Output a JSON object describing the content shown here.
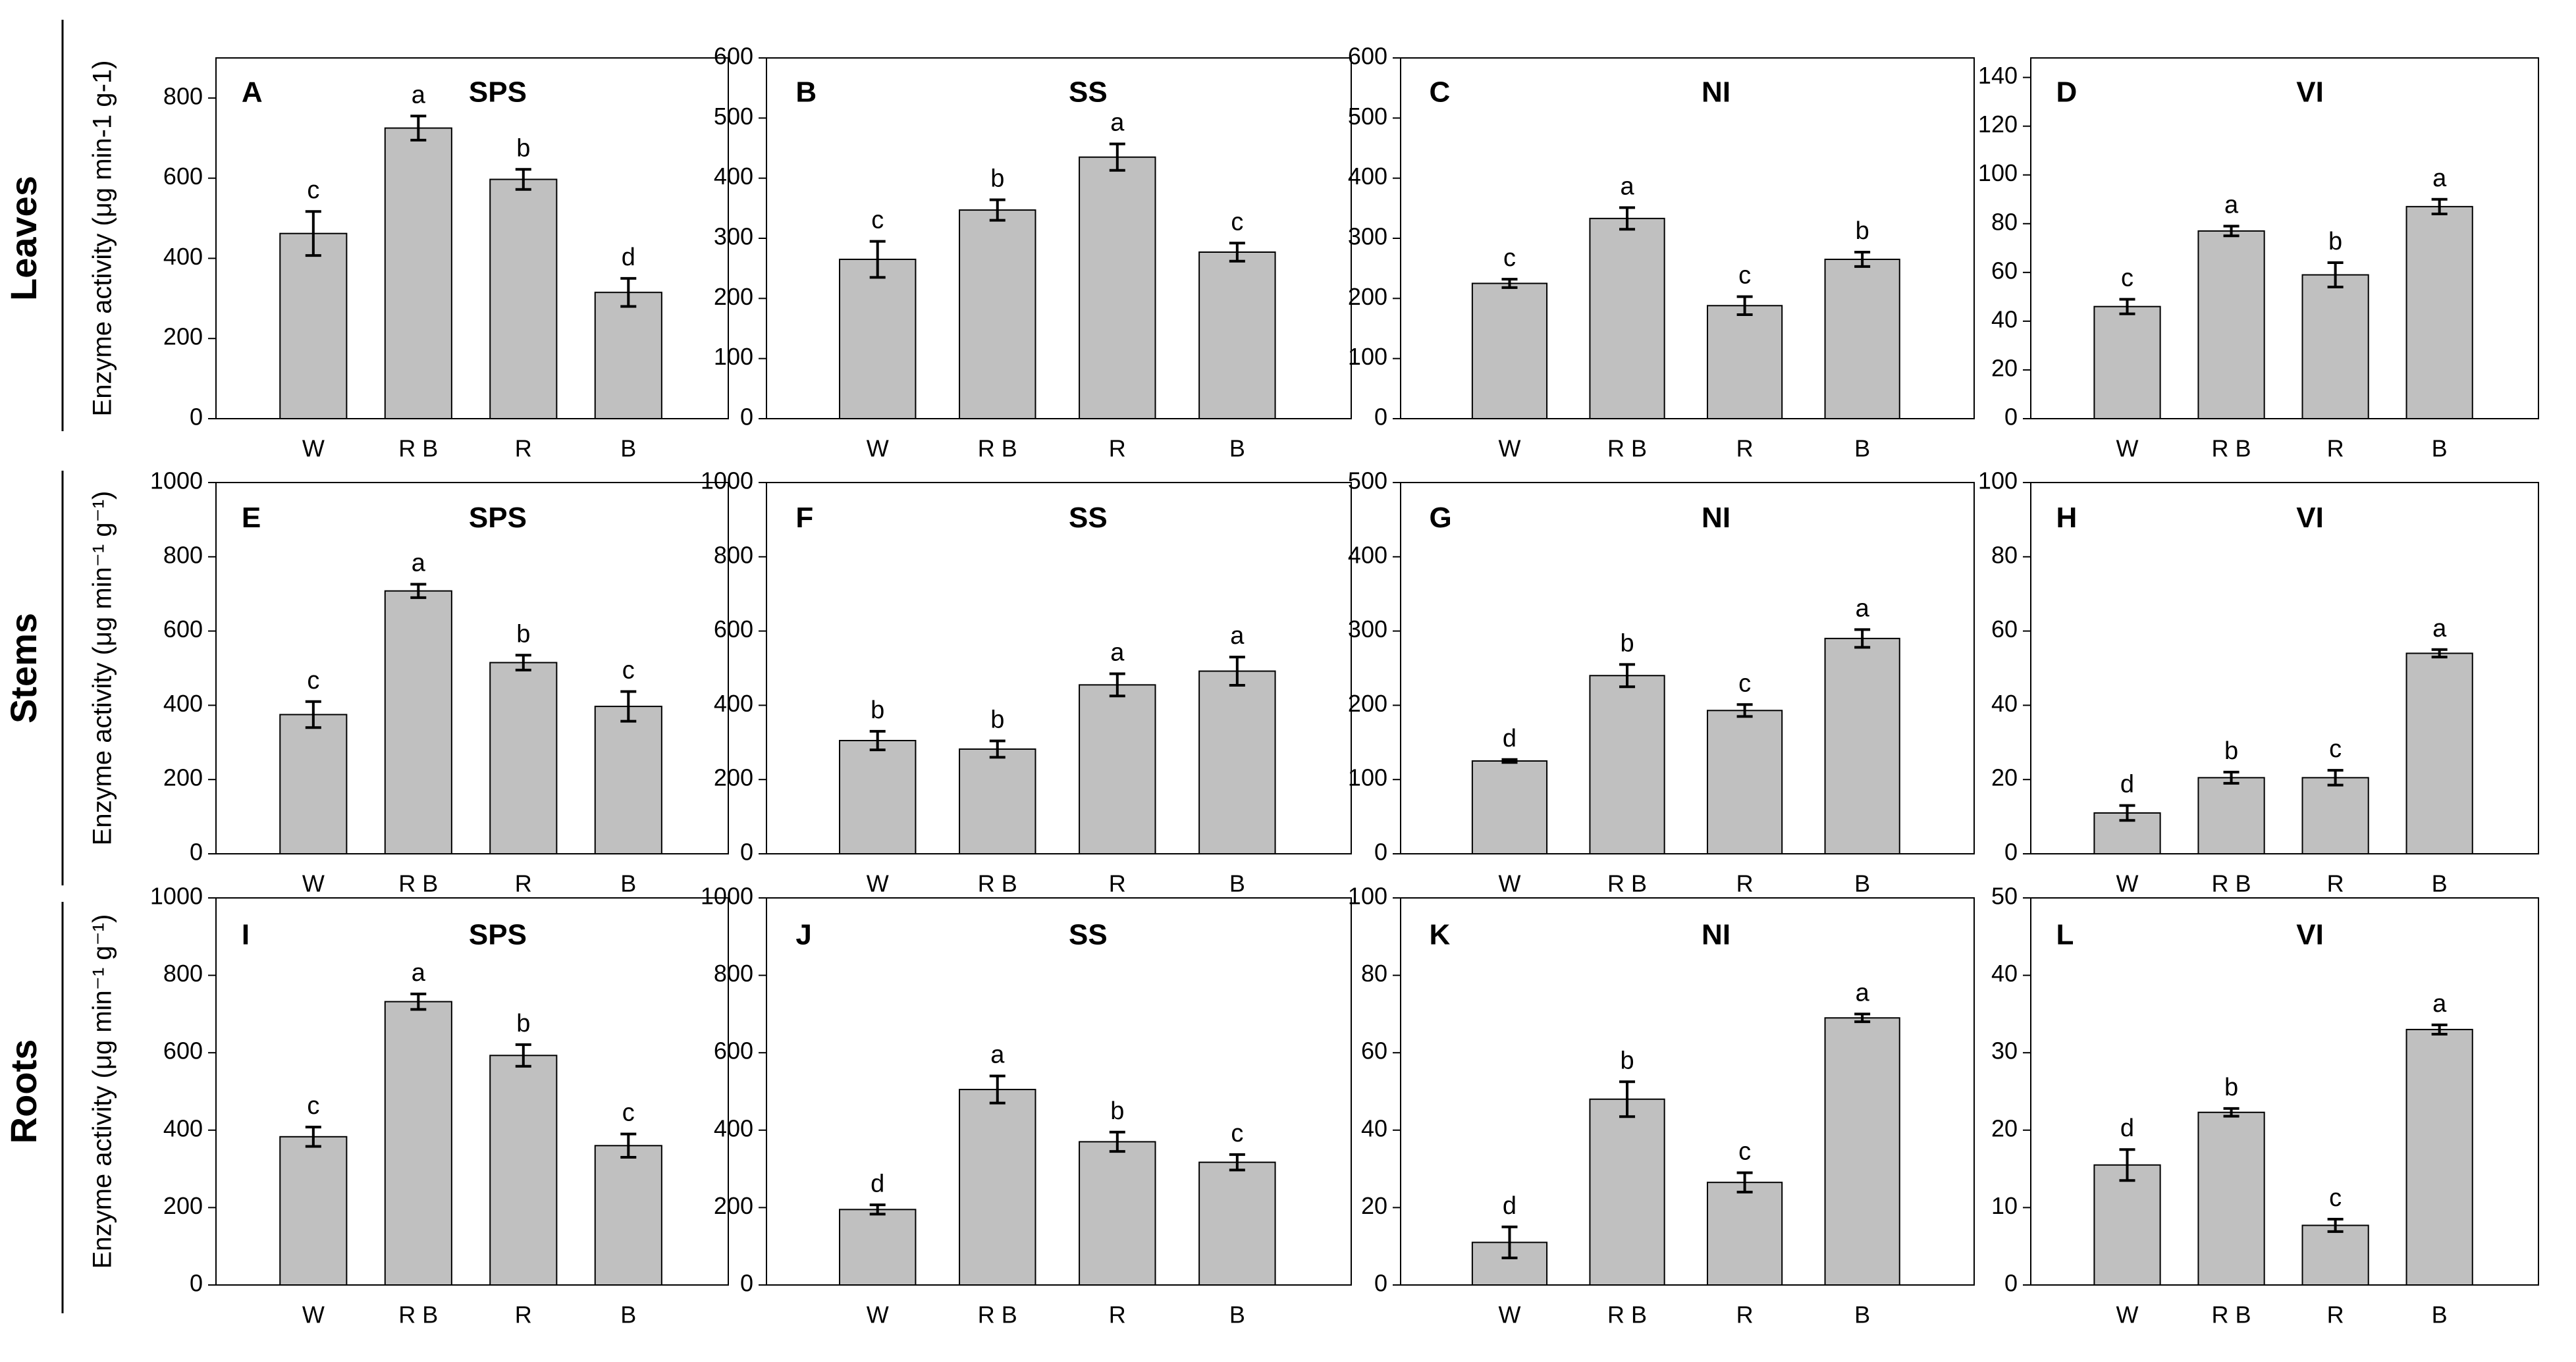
{
  "row_labels": [
    "Leaves",
    "Stems",
    "Roots"
  ],
  "chart_data": [
    {
      "type": "bar",
      "panel": "A",
      "title": "SPS",
      "ylabel": "Enzyme activity (μg min-1 g-1)",
      "categories": [
        "W",
        "R B",
        "R",
        "B"
      ],
      "values": [
        462,
        725,
        597,
        315
      ],
      "errors": [
        55,
        30,
        25,
        35
      ],
      "annotations": [
        "c",
        "a",
        "b",
        "d"
      ],
      "color": "#c0c0c0",
      "ylim": [
        0,
        900
      ],
      "yticks": [
        0,
        200,
        400,
        600,
        800
      ]
    },
    {
      "type": "bar",
      "panel": "B",
      "title": "SS",
      "categories": [
        "W",
        "R B",
        "R",
        "B"
      ],
      "values": [
        265,
        347,
        435,
        277
      ],
      "errors": [
        30,
        17,
        22,
        15
      ],
      "annotations": [
        "c",
        "b",
        "a",
        "c"
      ],
      "color": "#c0c0c0",
      "ylim": [
        0,
        600
      ],
      "yticks": [
        0,
        100,
        200,
        300,
        400,
        500,
        600
      ]
    },
    {
      "type": "bar",
      "panel": "C",
      "title": "NI",
      "categories": [
        "W",
        "R B",
        "R",
        "B"
      ],
      "values": [
        225,
        333,
        188,
        265
      ],
      "errors": [
        7,
        18,
        15,
        12
      ],
      "annotations": [
        "c",
        "a",
        "c",
        "b"
      ],
      "color": "#c0c0c0",
      "ylim": [
        0,
        600
      ],
      "yticks": [
        0,
        100,
        200,
        300,
        400,
        500,
        600
      ]
    },
    {
      "type": "bar",
      "panel": "D",
      "title": "VI",
      "categories": [
        "W",
        "R B",
        "R",
        "B"
      ],
      "values": [
        46,
        77,
        59,
        87
      ],
      "errors": [
        3,
        2,
        5,
        3
      ],
      "annotations": [
        "c",
        "a",
        "b",
        "a"
      ],
      "color": "#c0c0c0",
      "ylim": [
        0,
        148
      ],
      "yticks": [
        0,
        20,
        40,
        60,
        80,
        100,
        120,
        140
      ]
    },
    {
      "type": "bar",
      "panel": "E",
      "title": "SPS",
      "ylabel": "Enzyme activity (μg min⁻¹ g⁻¹)",
      "categories": [
        "W",
        "R B",
        "R",
        "B"
      ],
      "values": [
        375,
        708,
        515,
        397
      ],
      "errors": [
        35,
        18,
        20,
        40
      ],
      "annotations": [
        "c",
        "a",
        "b",
        "c"
      ],
      "color": "#c0c0c0",
      "ylim": [
        0,
        1000
      ],
      "yticks": [
        0,
        200,
        400,
        600,
        800,
        1000
      ]
    },
    {
      "type": "bar",
      "panel": "F",
      "title": "SS",
      "categories": [
        "W",
        "R B",
        "R",
        "B"
      ],
      "values": [
        305,
        282,
        455,
        492
      ],
      "errors": [
        25,
        22,
        30,
        38
      ],
      "annotations": [
        "b",
        "b",
        "a",
        "a"
      ],
      "color": "#c0c0c0",
      "ylim": [
        0,
        1000
      ],
      "yticks": [
        0,
        200,
        400,
        600,
        800,
        1000
      ]
    },
    {
      "type": "bar",
      "panel": "G",
      "title": "NI",
      "categories": [
        "W",
        "R B",
        "R",
        "B"
      ],
      "values": [
        125,
        240,
        193,
        290
      ],
      "errors": [
        2,
        15,
        8,
        12
      ],
      "annotations": [
        "d",
        "b",
        "c",
        "a"
      ],
      "color": "#c0c0c0",
      "ylim": [
        0,
        500
      ],
      "yticks": [
        0,
        100,
        200,
        300,
        400,
        500
      ]
    },
    {
      "type": "bar",
      "panel": "H",
      "title": "VI",
      "categories": [
        "W",
        "R B",
        "R",
        "B"
      ],
      "values": [
        11,
        20.5,
        20.5,
        54
      ],
      "errors": [
        2,
        1.5,
        2,
        1
      ],
      "annotations": [
        "d",
        "b",
        "c",
        "a"
      ],
      "color": "#c0c0c0",
      "ylim": [
        0,
        100
      ],
      "yticks": [
        0,
        20,
        40,
        60,
        80,
        100
      ]
    },
    {
      "type": "bar",
      "panel": "I",
      "title": "SPS",
      "ylabel": "Enzyme activity (μg min⁻¹ g⁻¹)",
      "categories": [
        "W",
        "R B",
        "R",
        "B"
      ],
      "values": [
        383,
        732,
        593,
        360
      ],
      "errors": [
        25,
        20,
        28,
        30
      ],
      "annotations": [
        "c",
        "a",
        "b",
        "c"
      ],
      "color": "#c0c0c0",
      "ylim": [
        0,
        1000
      ],
      "yticks": [
        0,
        200,
        400,
        600,
        800,
        1000
      ]
    },
    {
      "type": "bar",
      "panel": "J",
      "title": "SS",
      "categories": [
        "W",
        "R B",
        "R",
        "B"
      ],
      "values": [
        195,
        505,
        370,
        317
      ],
      "errors": [
        12,
        35,
        25,
        20
      ],
      "annotations": [
        "d",
        "a",
        "b",
        "c"
      ],
      "color": "#c0c0c0",
      "ylim": [
        0,
        1000
      ],
      "yticks": [
        0,
        200,
        400,
        600,
        800,
        1000
      ]
    },
    {
      "type": "bar",
      "panel": "K",
      "title": "NI",
      "categories": [
        "W",
        "R B",
        "R",
        "B"
      ],
      "values": [
        11,
        48,
        26.5,
        69
      ],
      "errors": [
        4,
        4.5,
        2.5,
        1
      ],
      "annotations": [
        "d",
        "b",
        "c",
        "a"
      ],
      "color": "#c0c0c0",
      "ylim": [
        0,
        100
      ],
      "yticks": [
        0,
        20,
        40,
        60,
        80,
        100
      ]
    },
    {
      "type": "bar",
      "panel": "L",
      "title": "VI",
      "categories": [
        "W",
        "R B",
        "R",
        "B"
      ],
      "values": [
        15.5,
        22.3,
        7.7,
        33
      ],
      "errors": [
        2,
        0.5,
        0.8,
        0.6
      ],
      "annotations": [
        "d",
        "b",
        "c",
        "a"
      ],
      "color": "#c0c0c0",
      "ylim": [
        0,
        50
      ],
      "yticks": [
        0,
        10,
        20,
        30,
        40,
        50
      ]
    }
  ]
}
